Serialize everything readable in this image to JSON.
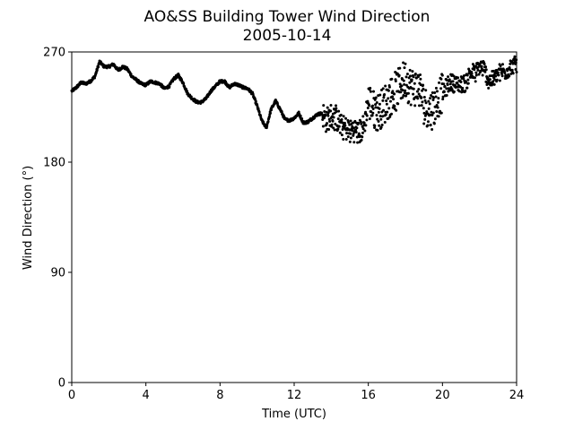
{
  "chart_data": {
    "type": "scatter",
    "title": "AO&SS Building Tower Wind Direction",
    "subtitle": "2005-10-14",
    "xlabel": "Time (UTC)",
    "ylabel": "Wind Direction (°)",
    "xlim": [
      0,
      24
    ],
    "ylim": [
      0,
      270
    ],
    "xticks": [
      0,
      4,
      8,
      12,
      16,
      20,
      24
    ],
    "yticks": [
      0,
      90,
      180,
      270
    ],
    "grid": false,
    "marker_color": "#000000",
    "series": [
      {
        "x": [
          0.0,
          0.25,
          0.5,
          0.75,
          1.0,
          1.25,
          1.5,
          1.75,
          2.0,
          2.25,
          2.5,
          2.75,
          3.0,
          3.25,
          3.5,
          3.75,
          4.0,
          4.25,
          4.5,
          4.75,
          5.0,
          5.25,
          5.5,
          5.75,
          6.0,
          6.25,
          6.5,
          6.75,
          7.0,
          7.25,
          7.5,
          7.75,
          8.0,
          8.25,
          8.5,
          8.75,
          9.0,
          9.25,
          9.5,
          9.75,
          10.0,
          10.25,
          10.5,
          10.75,
          11.0,
          11.25,
          11.5,
          11.75,
          12.0,
          12.25,
          12.5,
          12.75,
          13.0,
          13.25,
          13.5,
          13.75,
          14.0,
          14.25,
          14.5,
          14.75,
          15.0,
          15.25,
          15.5,
          15.75,
          16.0,
          16.25,
          16.5,
          16.75,
          17.0,
          17.25,
          17.5,
          17.75,
          18.0,
          18.25,
          18.5,
          18.75,
          19.0,
          19.25,
          19.5,
          19.75,
          20.0,
          20.25,
          20.5,
          20.75,
          21.0,
          21.25,
          21.5,
          21.75,
          22.0,
          22.25,
          22.5,
          22.75,
          23.0,
          23.25,
          23.5,
          23.75,
          24.0
        ],
        "y": [
          238,
          241,
          245,
          244,
          246,
          250,
          262,
          258,
          258,
          260,
          255,
          258,
          256,
          250,
          247,
          244,
          243,
          246,
          245,
          244,
          240,
          242,
          248,
          251,
          245,
          236,
          232,
          229,
          229,
          232,
          238,
          242,
          246,
          246,
          241,
          244,
          243,
          241,
          240,
          236,
          226,
          214,
          208,
          223,
          230,
          223,
          215,
          214,
          216,
          220,
          212,
          213,
          216,
          219,
          220,
          214,
          218,
          216,
          210,
          208,
          205,
          207,
          204,
          208,
          230,
          224,
          221,
          224,
          230,
          235,
          238,
          244,
          248,
          242,
          241,
          240,
          228,
          222,
          224,
          232,
          236,
          242,
          246,
          243,
          244,
          244,
          254,
          252,
          258,
          256,
          246,
          248,
          252,
          254,
          255,
          258,
          260
        ],
        "scatter_band": [
          {
            "from": 13.5,
            "to": 16.0,
            "spread": 10
          },
          {
            "from": 16.0,
            "to": 20.0,
            "spread": 16
          },
          {
            "from": 20.0,
            "to": 24.0,
            "spread": 7
          }
        ]
      }
    ]
  }
}
